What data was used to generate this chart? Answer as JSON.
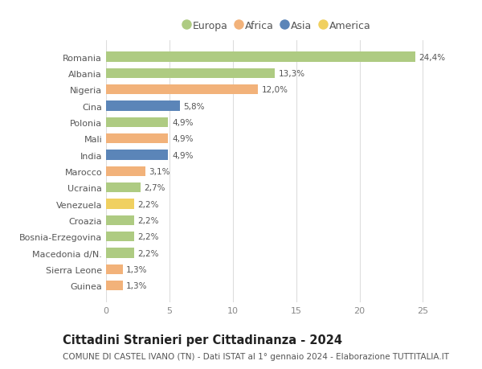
{
  "countries": [
    "Romania",
    "Albania",
    "Nigeria",
    "Cina",
    "Polonia",
    "Mali",
    "India",
    "Marocco",
    "Ucraina",
    "Venezuela",
    "Croazia",
    "Bosnia-Erzegovina",
    "Macedonia d/N.",
    "Sierra Leone",
    "Guinea"
  ],
  "values": [
    24.4,
    13.3,
    12.0,
    5.8,
    4.9,
    4.9,
    4.9,
    3.1,
    2.7,
    2.2,
    2.2,
    2.2,
    2.2,
    1.3,
    1.3
  ],
  "labels": [
    "24,4%",
    "13,3%",
    "12,0%",
    "5,8%",
    "4,9%",
    "4,9%",
    "4,9%",
    "3,1%",
    "2,7%",
    "2,2%",
    "2,2%",
    "2,2%",
    "2,2%",
    "1,3%",
    "1,3%"
  ],
  "continents": [
    "Europa",
    "Europa",
    "Africa",
    "Asia",
    "Europa",
    "Africa",
    "Asia",
    "Africa",
    "Europa",
    "America",
    "Europa",
    "Europa",
    "Europa",
    "Africa",
    "Africa"
  ],
  "colors": {
    "Europa": "#aecb82",
    "Africa": "#f2b27a",
    "Asia": "#5b85b8",
    "America": "#f0d060"
  },
  "legend_order": [
    "Europa",
    "Africa",
    "Asia",
    "America"
  ],
  "xlim": [
    0,
    27
  ],
  "xticks": [
    0,
    5,
    10,
    15,
    20,
    25
  ],
  "title": "Cittadini Stranieri per Cittadinanza - 2024",
  "subtitle": "COMUNE DI CASTEL IVANO (TN) - Dati ISTAT al 1° gennaio 2024 - Elaborazione TUTTITALIA.IT",
  "background_color": "#ffffff",
  "bar_height": 0.6,
  "title_fontsize": 10.5,
  "subtitle_fontsize": 7.5,
  "label_fontsize": 7.5,
  "tick_fontsize": 8,
  "legend_fontsize": 9
}
